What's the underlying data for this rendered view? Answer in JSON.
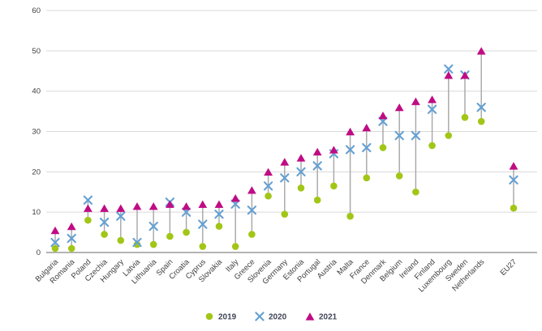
{
  "chart_data": {
    "type": "scatter",
    "title": "",
    "categories": [
      "Bulgaria",
      "Romania",
      "Poland",
      "Czechia",
      "Hungary",
      "Latvia",
      "Lithuania",
      "Spain",
      "Croatia",
      "Cyprus",
      "Slovakia",
      "Italy",
      "Greece",
      "Slovenia",
      "Germany",
      "Estonia",
      "Portugal",
      "Austria",
      "Malta",
      "France",
      "Denmark",
      "Belgium",
      "Ireland",
      "Finland",
      "Luxembourg",
      "Sweden",
      "Netherlands",
      "EU27"
    ],
    "series": [
      {
        "name": "2019",
        "marker": "circle",
        "color": "#a2c617",
        "values": [
          1,
          1,
          8,
          4.5,
          3,
          2,
          2,
          4,
          5,
          1.5,
          6.5,
          1.5,
          4.5,
          14,
          9.5,
          16,
          13,
          16.5,
          9,
          18.5,
          26,
          19,
          15,
          26.5,
          29,
          33.5,
          32.5,
          11
        ]
      },
      {
        "name": "2020",
        "marker": "x",
        "color": "#63a0d4",
        "values": [
          2.5,
          3.5,
          13,
          7.5,
          9,
          2.5,
          6.5,
          12.5,
          10,
          7,
          9.5,
          12,
          10.5,
          16.5,
          18.5,
          20,
          21.5,
          24.5,
          25.5,
          26,
          32.5,
          29,
          29,
          35.5,
          45.5,
          44,
          36,
          18
        ]
      },
      {
        "name": "2021",
        "marker": "triangle",
        "color": "#c00c84",
        "values": [
          5.5,
          6.5,
          11,
          11,
          11,
          11.5,
          11.5,
          12,
          11.5,
          12,
          12,
          13.5,
          15.5,
          20,
          22.5,
          23.5,
          25,
          25.5,
          30,
          31,
          34,
          36,
          37.5,
          38,
          44,
          44,
          50,
          21.5
        ]
      }
    ],
    "ylim": [
      0,
      60
    ],
    "yticks": [
      0,
      10,
      20,
      30,
      40,
      50,
      60
    ],
    "xlabel": "",
    "ylabel": "",
    "grid": true,
    "legend_position": "bottom",
    "legend_labels": [
      "2019",
      "2020",
      "2021"
    ]
  },
  "style": {
    "gridline_color": "#d9d9d9",
    "axis_line_color": "#9b9b9b",
    "connector_color": "#a6a6a6",
    "tick_text_color": "#404040",
    "label_text_color": "#404040",
    "legend_text_color": "#3f4458"
  }
}
